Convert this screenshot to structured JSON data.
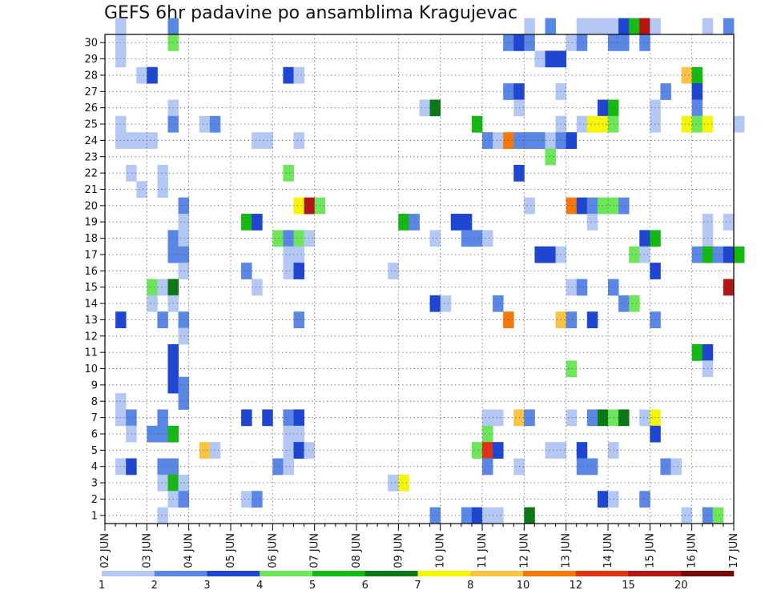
{
  "chart_data": {
    "type": "heatmap",
    "title": "GEFS 6hr padavine po ansamblima Kragujevac",
    "x_tick_labels": [
      "02 JUN",
      "03 JUN",
      "04 JUN",
      "05 JUN",
      "06 JUN",
      "07 JUN",
      "08 JUN",
      "09 JUN",
      "10 JUN",
      "11 JUN",
      "12 JUN",
      "13 JUN",
      "14 JUN",
      "15 JUN",
      "16 JUN",
      "17 JUN"
    ],
    "y_tick_labels": [
      "1",
      "2",
      "3",
      "4",
      "5",
      "6",
      "7",
      "8",
      "9",
      "10",
      "11",
      "12",
      "13",
      "14",
      "15",
      "16",
      "17",
      "18",
      "19",
      "20",
      "21",
      "22",
      "23",
      "24",
      "25",
      "26",
      "27",
      "28",
      "29",
      "30"
    ],
    "legend_labels": [
      "1",
      "2",
      "3",
      "4",
      "5",
      "6",
      "7",
      "8",
      "10",
      "12",
      "15",
      "20"
    ],
    "levels": [
      1,
      2,
      3,
      4,
      5,
      6,
      7,
      8,
      10,
      12,
      15,
      20
    ],
    "colors": [
      "#b4c8f5",
      "#5a87e6",
      "#1e46d2",
      "#6ee65a",
      "#14b914",
      "#0a7814",
      "#f5f50a",
      "#fac341",
      "#f5780a",
      "#e13214",
      "#b41414",
      "#780a0a"
    ],
    "x_range": [
      "2026-06-02 00Z",
      "2026-06-17 00Z"
    ],
    "y_range": [
      0,
      30
    ],
    "grid": true,
    "legend_placement": "bottom",
    "x_start": "2026-06-02 00Z",
    "x_step_hours": 6,
    "cells": [
      [
        30,
        1,
        0
      ],
      [
        30,
        6,
        1
      ],
      [
        30,
        40,
        0
      ],
      [
        30,
        42,
        1
      ],
      [
        30,
        45,
        0
      ],
      [
        30,
        46,
        0
      ],
      [
        30,
        47,
        0
      ],
      [
        30,
        48,
        0
      ],
      [
        30,
        49,
        2
      ],
      [
        30,
        50,
        4
      ],
      [
        30,
        51,
        10
      ],
      [
        30,
        52,
        0
      ],
      [
        30,
        57,
        0
      ],
      [
        30,
        59,
        1
      ],
      [
        29,
        1,
        0
      ],
      [
        29,
        6,
        3
      ],
      [
        29,
        38,
        1
      ],
      [
        29,
        39,
        2
      ],
      [
        29,
        40,
        1
      ],
      [
        29,
        44,
        0
      ],
      [
        29,
        45,
        1
      ],
      [
        29,
        48,
        1
      ],
      [
        29,
        49,
        1
      ],
      [
        29,
        51,
        1
      ],
      [
        28,
        1,
        0
      ],
      [
        28,
        41,
        0
      ],
      [
        28,
        42,
        2
      ],
      [
        28,
        43,
        2
      ],
      [
        27,
        3,
        0
      ],
      [
        27,
        4,
        2
      ],
      [
        27,
        17,
        2
      ],
      [
        27,
        18,
        0
      ],
      [
        27,
        55,
        7
      ],
      [
        27,
        56,
        4
      ],
      [
        26,
        38,
        1
      ],
      [
        26,
        39,
        2
      ],
      [
        26,
        43,
        0
      ],
      [
        26,
        53,
        1
      ],
      [
        26,
        56,
        2
      ],
      [
        25,
        6,
        0
      ],
      [
        25,
        30,
        0
      ],
      [
        25,
        31,
        5
      ],
      [
        25,
        39,
        0
      ],
      [
        25,
        47,
        2
      ],
      [
        25,
        48,
        4
      ],
      [
        25,
        52,
        0
      ],
      [
        25,
        56,
        1
      ],
      [
        24,
        1,
        0
      ],
      [
        24,
        6,
        1
      ],
      [
        24,
        9,
        0
      ],
      [
        24,
        10,
        1
      ],
      [
        24,
        35,
        4
      ],
      [
        24,
        43,
        0
      ],
      [
        24,
        45,
        0
      ],
      [
        24,
        46,
        6
      ],
      [
        24,
        47,
        6
      ],
      [
        24,
        48,
        3
      ],
      [
        24,
        52,
        0
      ],
      [
        24,
        55,
        6
      ],
      [
        24,
        56,
        3
      ],
      [
        24,
        57,
        6
      ],
      [
        24,
        60,
        0
      ],
      [
        23,
        1,
        0
      ],
      [
        23,
        2,
        0
      ],
      [
        23,
        3,
        0
      ],
      [
        23,
        4,
        0
      ],
      [
        23,
        14,
        0
      ],
      [
        23,
        15,
        0
      ],
      [
        23,
        18,
        0
      ],
      [
        23,
        36,
        1
      ],
      [
        23,
        37,
        0
      ],
      [
        23,
        38,
        8
      ],
      [
        23,
        39,
        1
      ],
      [
        23,
        40,
        1
      ],
      [
        23,
        41,
        1
      ],
      [
        23,
        42,
        0
      ],
      [
        23,
        43,
        1
      ],
      [
        23,
        44,
        2
      ],
      [
        22,
        42,
        3
      ],
      [
        21,
        2,
        0
      ],
      [
        21,
        5,
        0
      ],
      [
        21,
        17,
        3
      ],
      [
        21,
        39,
        2
      ],
      [
        20,
        3,
        0
      ],
      [
        20,
        5,
        0
      ],
      [
        19,
        7,
        1
      ],
      [
        19,
        18,
        6
      ],
      [
        19,
        19,
        10
      ],
      [
        19,
        20,
        3
      ],
      [
        19,
        40,
        0
      ],
      [
        19,
        44,
        8
      ],
      [
        19,
        45,
        2
      ],
      [
        19,
        46,
        1
      ],
      [
        19,
        47,
        3
      ],
      [
        19,
        48,
        3
      ],
      [
        19,
        49,
        1
      ],
      [
        18,
        7,
        0
      ],
      [
        18,
        13,
        4
      ],
      [
        18,
        14,
        2
      ],
      [
        18,
        28,
        4
      ],
      [
        18,
        29,
        1
      ],
      [
        18,
        33,
        2
      ],
      [
        18,
        34,
        2
      ],
      [
        18,
        46,
        0
      ],
      [
        18,
        57,
        0
      ],
      [
        18,
        59,
        0
      ],
      [
        17,
        6,
        1
      ],
      [
        17,
        7,
        0
      ],
      [
        17,
        16,
        3
      ],
      [
        17,
        17,
        1
      ],
      [
        17,
        18,
        3
      ],
      [
        17,
        19,
        0
      ],
      [
        17,
        31,
        0
      ],
      [
        17,
        34,
        1
      ],
      [
        17,
        35,
        1
      ],
      [
        17,
        36,
        0
      ],
      [
        17,
        51,
        2
      ],
      [
        17,
        52,
        4
      ],
      [
        17,
        57,
        0
      ],
      [
        16,
        6,
        1
      ],
      [
        16,
        7,
        1
      ],
      [
        16,
        17,
        0
      ],
      [
        16,
        18,
        0
      ],
      [
        16,
        41,
        2
      ],
      [
        16,
        42,
        2
      ],
      [
        16,
        43,
        0
      ],
      [
        16,
        50,
        3
      ],
      [
        16,
        51,
        0
      ],
      [
        16,
        56,
        1
      ],
      [
        16,
        57,
        4
      ],
      [
        16,
        58,
        1
      ],
      [
        16,
        59,
        2
      ],
      [
        16,
        60,
        4
      ],
      [
        15,
        7,
        0
      ],
      [
        15,
        13,
        1
      ],
      [
        15,
        17,
        0
      ],
      [
        15,
        18,
        2
      ],
      [
        15,
        27,
        0
      ],
      [
        15,
        52,
        2
      ],
      [
        14,
        4,
        3
      ],
      [
        14,
        5,
        0
      ],
      [
        14,
        6,
        5
      ],
      [
        14,
        14,
        0
      ],
      [
        14,
        44,
        0
      ],
      [
        14,
        45,
        1
      ],
      [
        14,
        48,
        1
      ],
      [
        14,
        59,
        10
      ],
      [
        13,
        4,
        0
      ],
      [
        13,
        6,
        0
      ],
      [
        13,
        31,
        2
      ],
      [
        13,
        32,
        0
      ],
      [
        13,
        37,
        1
      ],
      [
        13,
        49,
        1
      ],
      [
        13,
        50,
        3
      ],
      [
        12,
        1,
        2
      ],
      [
        12,
        5,
        1
      ],
      [
        12,
        7,
        1
      ],
      [
        12,
        18,
        1
      ],
      [
        12,
        38,
        8
      ],
      [
        12,
        43,
        7
      ],
      [
        12,
        44,
        1
      ],
      [
        12,
        46,
        2
      ],
      [
        12,
        52,
        1
      ],
      [
        11,
        7,
        0
      ],
      [
        10,
        6,
        2
      ],
      [
        10,
        56,
        4
      ],
      [
        10,
        57,
        2
      ],
      [
        9,
        6,
        2
      ],
      [
        9,
        44,
        3
      ],
      [
        9,
        57,
        0
      ],
      [
        8,
        6,
        2
      ],
      [
        8,
        7,
        1
      ],
      [
        7,
        1,
        0
      ],
      [
        7,
        7,
        1
      ],
      [
        6,
        1,
        0
      ],
      [
        6,
        2,
        1
      ],
      [
        6,
        5,
        1
      ],
      [
        6,
        13,
        2
      ],
      [
        6,
        15,
        2
      ],
      [
        6,
        17,
        1
      ],
      [
        6,
        18,
        2
      ],
      [
        6,
        36,
        0
      ],
      [
        6,
        37,
        0
      ],
      [
        6,
        39,
        7
      ],
      [
        6,
        40,
        1
      ],
      [
        6,
        44,
        0
      ],
      [
        6,
        46,
        1
      ],
      [
        6,
        47,
        5
      ],
      [
        6,
        48,
        3
      ],
      [
        6,
        49,
        5
      ],
      [
        6,
        51,
        0
      ],
      [
        6,
        52,
        6
      ],
      [
        5,
        2,
        0
      ],
      [
        5,
        4,
        1
      ],
      [
        5,
        5,
        1
      ],
      [
        5,
        6,
        4
      ],
      [
        5,
        17,
        0
      ],
      [
        5,
        18,
        0
      ],
      [
        5,
        36,
        3
      ],
      [
        5,
        52,
        2
      ],
      [
        4,
        9,
        7
      ],
      [
        4,
        10,
        0
      ],
      [
        4,
        17,
        0
      ],
      [
        4,
        18,
        2
      ],
      [
        4,
        19,
        0
      ],
      [
        4,
        35,
        3
      ],
      [
        4,
        36,
        9
      ],
      [
        4,
        37,
        2
      ],
      [
        4,
        42,
        0
      ],
      [
        4,
        43,
        0
      ],
      [
        4,
        45,
        2
      ],
      [
        4,
        48,
        0
      ],
      [
        3,
        1,
        0
      ],
      [
        3,
        2,
        2
      ],
      [
        3,
        5,
        1
      ],
      [
        3,
        6,
        1
      ],
      [
        3,
        16,
        1
      ],
      [
        3,
        17,
        0
      ],
      [
        3,
        36,
        1
      ],
      [
        3,
        39,
        0
      ],
      [
        3,
        45,
        1
      ],
      [
        3,
        46,
        1
      ],
      [
        3,
        53,
        1
      ],
      [
        3,
        54,
        0
      ],
      [
        2,
        5,
        0
      ],
      [
        2,
        6,
        4
      ],
      [
        2,
        7,
        0
      ],
      [
        2,
        27,
        0
      ],
      [
        2,
        28,
        6
      ],
      [
        1,
        6,
        0
      ],
      [
        1,
        7,
        1
      ],
      [
        1,
        13,
        0
      ],
      [
        1,
        14,
        1
      ],
      [
        1,
        47,
        2
      ],
      [
        1,
        48,
        0
      ],
      [
        1,
        51,
        1
      ],
      [
        0,
        5,
        0
      ],
      [
        0,
        31,
        1
      ],
      [
        0,
        34,
        1
      ],
      [
        0,
        35,
        2
      ],
      [
        0,
        36,
        0
      ],
      [
        0,
        37,
        0
      ],
      [
        0,
        40,
        5
      ],
      [
        0,
        55,
        0
      ],
      [
        0,
        57,
        1
      ],
      [
        0,
        58,
        3
      ]
    ]
  }
}
